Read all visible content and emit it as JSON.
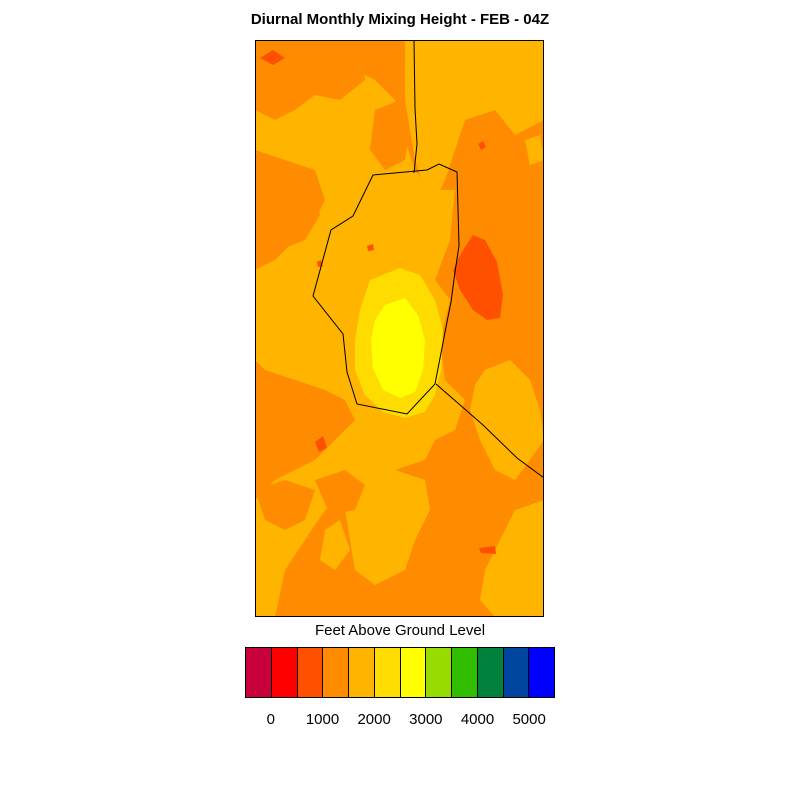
{
  "title": "Diurnal Monthly Mixing Height - FEB - 04Z",
  "colorbar": {
    "label": "Feet Above Ground Level",
    "colors": [
      "#c8003c",
      "#ff0000",
      "#ff5000",
      "#ff8c00",
      "#ffb400",
      "#ffdc00",
      "#ffff00",
      "#96dc00",
      "#32be00",
      "#00823c",
      "#0046a0",
      "#0000ff"
    ],
    "tick_labels": [
      "0",
      "1000",
      "2000",
      "3000",
      "4000",
      "5000"
    ]
  },
  "palette": {
    "base": "#ff8c00",
    "light": "#ffb400",
    "yellow_orange": "#ffdc00",
    "yellow": "#ffff00",
    "red_orange": "#ff5000",
    "boundary": "#000000"
  }
}
